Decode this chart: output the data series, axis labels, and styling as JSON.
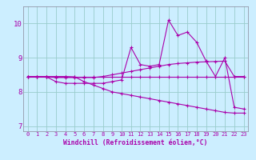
{
  "title": "",
  "xlabel": "Windchill (Refroidissement éolien,°C)",
  "bg_color": "#cceeff",
  "line_color": "#aa00aa",
  "grid_color": "#99cccc",
  "xlim": [
    -0.5,
    23.5
  ],
  "ylim": [
    6.85,
    10.5
  ],
  "yticks": [
    7,
    8,
    9,
    10
  ],
  "xticks": [
    0,
    1,
    2,
    3,
    4,
    5,
    6,
    7,
    8,
    9,
    10,
    11,
    12,
    13,
    14,
    15,
    16,
    17,
    18,
    19,
    20,
    21,
    22,
    23
  ],
  "series1_x": [
    0,
    1,
    2,
    3,
    4,
    5,
    6,
    7,
    8,
    9,
    10,
    11,
    12,
    13,
    14,
    15,
    16,
    17,
    18,
    19,
    20,
    21,
    22,
    23
  ],
  "series1_y": [
    8.45,
    8.45,
    8.45,
    8.45,
    8.45,
    8.45,
    8.45,
    8.45,
    8.45,
    8.45,
    8.45,
    8.45,
    8.45,
    8.45,
    8.45,
    8.45,
    8.45,
    8.45,
    8.45,
    8.45,
    8.45,
    8.45,
    8.45,
    8.45
  ],
  "series2_x": [
    0,
    1,
    2,
    3,
    4,
    5,
    6,
    7,
    8,
    9,
    10,
    11,
    12,
    13,
    14,
    15,
    16,
    17,
    18,
    19,
    20,
    21,
    22,
    23
  ],
  "series2_y": [
    8.45,
    8.45,
    8.45,
    8.45,
    8.45,
    8.44,
    8.3,
    8.2,
    8.1,
    8.0,
    7.95,
    7.9,
    7.85,
    7.8,
    7.75,
    7.7,
    7.65,
    7.6,
    7.55,
    7.5,
    7.45,
    7.4,
    7.38,
    7.38
  ],
  "series3_x": [
    0,
    1,
    2,
    3,
    4,
    5,
    6,
    7,
    8,
    9,
    10,
    11,
    12,
    13,
    14,
    15,
    16,
    17,
    18,
    19,
    20,
    21,
    22,
    23
  ],
  "series3_y": [
    8.45,
    8.45,
    8.44,
    8.42,
    8.42,
    8.42,
    8.42,
    8.42,
    8.45,
    8.5,
    8.55,
    8.6,
    8.65,
    8.7,
    8.75,
    8.8,
    8.83,
    8.85,
    8.87,
    8.88,
    8.89,
    8.9,
    8.45,
    8.45
  ],
  "series4_x": [
    0,
    1,
    2,
    3,
    4,
    5,
    6,
    7,
    8,
    9,
    10,
    11,
    12,
    13,
    14,
    15,
    16,
    17,
    18,
    19,
    20,
    21,
    22,
    23
  ],
  "series4_y": [
    8.45,
    8.45,
    8.44,
    8.3,
    8.25,
    8.25,
    8.25,
    8.25,
    8.25,
    8.3,
    8.35,
    9.3,
    8.8,
    8.75,
    8.8,
    10.1,
    9.65,
    9.75,
    9.45,
    8.9,
    8.45,
    9.0,
    7.55,
    7.5
  ]
}
